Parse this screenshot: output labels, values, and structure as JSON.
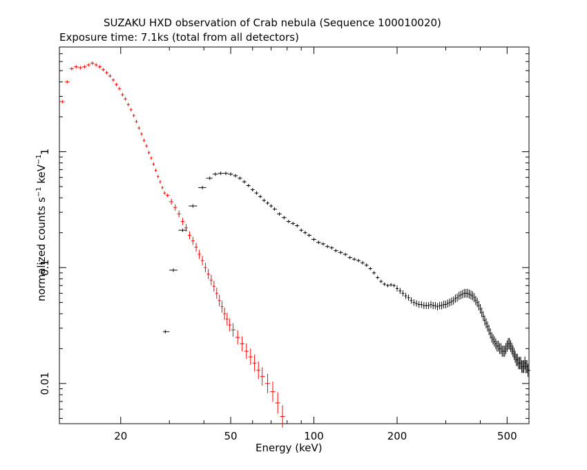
{
  "chart_data": {
    "type": "scatter",
    "title": "SUZAKU HXD observation of Crab nebula (Sequence 100010020)",
    "subtitle": "Exposure time: 7.1ks (total from all detectors)",
    "xlabel": "Energy (keV)",
    "ylabel_main": "normalized counts s",
    "ylabel_unit": " keV",
    "ylabel_exp": "−1",
    "xscale": "log",
    "yscale": "log",
    "xlim": [
      12,
      600
    ],
    "ylim": [
      0.0045,
      8.0
    ],
    "xticks": [
      20,
      50,
      100,
      200,
      500
    ],
    "xtick_labels": [
      "20",
      "50",
      "100",
      "200",
      "500"
    ],
    "yticks": [
      0.01,
      0.1,
      1
    ],
    "ytick_labels": [
      "0.01",
      "0.1",
      "1"
    ],
    "grid": false,
    "legend": "none",
    "series": [
      {
        "color": "#ff0000",
        "points": [
          [
            12.3,
            2.7
          ],
          [
            12.8,
            4.0
          ],
          [
            13.3,
            5.2
          ],
          [
            13.8,
            5.4
          ],
          [
            14.3,
            5.3
          ],
          [
            14.8,
            5.4
          ],
          [
            15.3,
            5.6
          ],
          [
            15.8,
            5.8
          ],
          [
            16.3,
            5.6
          ],
          [
            16.8,
            5.4
          ],
          [
            17.3,
            5.1
          ],
          [
            17.8,
            4.8
          ],
          [
            18.3,
            4.5
          ],
          [
            18.8,
            4.15
          ],
          [
            19.3,
            3.8
          ],
          [
            19.8,
            3.5
          ],
          [
            20.3,
            3.1
          ],
          [
            20.8,
            2.85
          ],
          [
            21.3,
            2.55
          ],
          [
            21.8,
            2.3
          ],
          [
            22.3,
            2.05
          ],
          [
            22.8,
            1.82
          ],
          [
            23.3,
            1.6
          ],
          [
            23.8,
            1.42
          ],
          [
            24.3,
            1.25
          ],
          [
            24.8,
            1.12
          ],
          [
            25.3,
            0.98
          ],
          [
            25.8,
            0.88
          ],
          [
            26.3,
            0.78
          ],
          [
            26.8,
            0.69
          ],
          [
            27.3,
            0.61
          ],
          [
            27.8,
            0.55
          ],
          [
            28.3,
            0.49
          ],
          [
            28.8,
            0.44
          ],
          [
            29.5,
            0.42
          ],
          [
            30.5,
            0.37
          ],
          [
            31.5,
            0.33
          ],
          [
            32.5,
            0.29
          ],
          [
            33.5,
            0.25
          ],
          [
            34.5,
            0.22
          ],
          [
            35.5,
            0.19
          ],
          [
            36.5,
            0.17
          ],
          [
            37.5,
            0.15
          ],
          [
            38.5,
            0.13
          ],
          [
            39.5,
            0.115
          ],
          [
            40.5,
            0.1
          ],
          [
            41.5,
            0.088
          ],
          [
            42.5,
            0.078
          ],
          [
            43.5,
            0.069
          ],
          [
            44.5,
            0.06
          ],
          [
            45.5,
            0.052
          ],
          [
            46.5,
            0.046
          ],
          [
            47.5,
            0.04
          ],
          [
            48.5,
            0.036
          ],
          [
            49.5,
            0.032
          ],
          [
            51,
            0.029
          ],
          [
            53,
            0.025
          ],
          [
            55,
            0.022
          ],
          [
            57,
            0.019
          ],
          [
            59,
            0.017
          ],
          [
            61,
            0.015
          ],
          [
            63,
            0.013
          ],
          [
            65,
            0.0115
          ],
          [
            68,
            0.01
          ],
          [
            71,
            0.0085
          ],
          [
            74,
            0.0068
          ],
          [
            77,
            0.0052
          ]
        ]
      },
      {
        "color": "#000000",
        "points": [
          [
            29.0,
            0.028
          ],
          [
            31.0,
            0.095
          ],
          [
            33.5,
            0.21
          ],
          [
            36.5,
            0.34
          ],
          [
            39.5,
            0.49
          ],
          [
            42,
            0.59
          ],
          [
            44,
            0.64
          ],
          [
            46,
            0.65
          ],
          [
            48,
            0.65
          ],
          [
            50,
            0.64
          ],
          [
            52,
            0.62
          ],
          [
            54,
            0.59
          ],
          [
            56,
            0.55
          ],
          [
            58,
            0.51
          ],
          [
            60,
            0.47
          ],
          [
            62,
            0.44
          ],
          [
            64,
            0.41
          ],
          [
            66,
            0.38
          ],
          [
            68,
            0.36
          ],
          [
            70,
            0.34
          ],
          [
            72,
            0.32
          ],
          [
            75,
            0.29
          ],
          [
            78,
            0.27
          ],
          [
            81,
            0.25
          ],
          [
            84,
            0.24
          ],
          [
            87,
            0.23
          ],
          [
            90,
            0.21
          ],
          [
            93,
            0.2
          ],
          [
            96,
            0.19
          ],
          [
            100,
            0.175
          ],
          [
            104,
            0.165
          ],
          [
            108,
            0.16
          ],
          [
            112,
            0.152
          ],
          [
            116,
            0.148
          ],
          [
            120,
            0.14
          ],
          [
            125,
            0.135
          ],
          [
            130,
            0.13
          ],
          [
            135,
            0.122
          ],
          [
            140,
            0.118
          ],
          [
            145,
            0.115
          ],
          [
            150,
            0.11
          ],
          [
            155,
            0.105
          ],
          [
            160,
            0.098
          ],
          [
            165,
            0.09
          ],
          [
            170,
            0.082
          ],
          [
            175,
            0.076
          ],
          [
            180,
            0.072
          ],
          [
            185,
            0.07
          ],
          [
            190,
            0.071
          ],
          [
            195,
            0.07
          ],
          [
            200,
            0.066
          ],
          [
            205,
            0.063
          ],
          [
            210,
            0.06
          ],
          [
            215,
            0.057
          ],
          [
            220,
            0.055
          ],
          [
            225,
            0.052
          ],
          [
            230,
            0.05
          ],
          [
            235,
            0.049
          ],
          [
            240,
            0.048
          ],
          [
            245,
            0.048
          ],
          [
            250,
            0.047
          ],
          [
            255,
            0.047
          ],
          [
            260,
            0.047
          ],
          [
            265,
            0.048
          ],
          [
            270,
            0.047
          ],
          [
            275,
            0.047
          ],
          [
            280,
            0.046
          ],
          [
            285,
            0.047
          ],
          [
            290,
            0.047
          ],
          [
            295,
            0.048
          ],
          [
            300,
            0.048
          ],
          [
            305,
            0.049
          ],
          [
            310,
            0.05
          ],
          [
            315,
            0.051
          ],
          [
            320,
            0.052
          ],
          [
            325,
            0.054
          ],
          [
            330,
            0.055
          ],
          [
            335,
            0.057
          ],
          [
            340,
            0.058
          ],
          [
            345,
            0.059
          ],
          [
            350,
            0.06
          ],
          [
            355,
            0.06
          ],
          [
            360,
            0.06
          ],
          [
            365,
            0.059
          ],
          [
            370,
            0.058
          ],
          [
            375,
            0.057
          ],
          [
            380,
            0.055
          ],
          [
            385,
            0.052
          ],
          [
            390,
            0.05
          ],
          [
            395,
            0.047
          ],
          [
            400,
            0.044
          ],
          [
            405,
            0.041
          ],
          [
            410,
            0.038
          ],
          [
            415,
            0.035
          ],
          [
            420,
            0.033
          ],
          [
            425,
            0.031
          ],
          [
            430,
            0.029
          ],
          [
            435,
            0.027
          ],
          [
            440,
            0.025
          ],
          [
            445,
            0.024
          ],
          [
            450,
            0.023
          ],
          [
            455,
            0.022
          ],
          [
            460,
            0.021
          ],
          [
            465,
            0.021
          ],
          [
            470,
            0.02
          ],
          [
            475,
            0.02
          ],
          [
            480,
            0.019
          ],
          [
            485,
            0.019
          ],
          [
            490,
            0.019
          ],
          [
            495,
            0.02
          ],
          [
            500,
            0.021
          ],
          [
            505,
            0.022
          ],
          [
            510,
            0.022
          ],
          [
            515,
            0.021
          ],
          [
            520,
            0.02
          ],
          [
            525,
            0.019
          ],
          [
            530,
            0.018
          ],
          [
            535,
            0.017
          ],
          [
            540,
            0.016
          ],
          [
            545,
            0.016
          ],
          [
            550,
            0.015
          ],
          [
            555,
            0.015
          ],
          [
            560,
            0.015
          ],
          [
            565,
            0.014
          ],
          [
            570,
            0.014
          ],
          [
            575,
            0.014
          ],
          [
            580,
            0.015
          ],
          [
            585,
            0.014
          ],
          [
            590,
            0.014
          ],
          [
            595,
            0.013
          ]
        ]
      }
    ]
  }
}
